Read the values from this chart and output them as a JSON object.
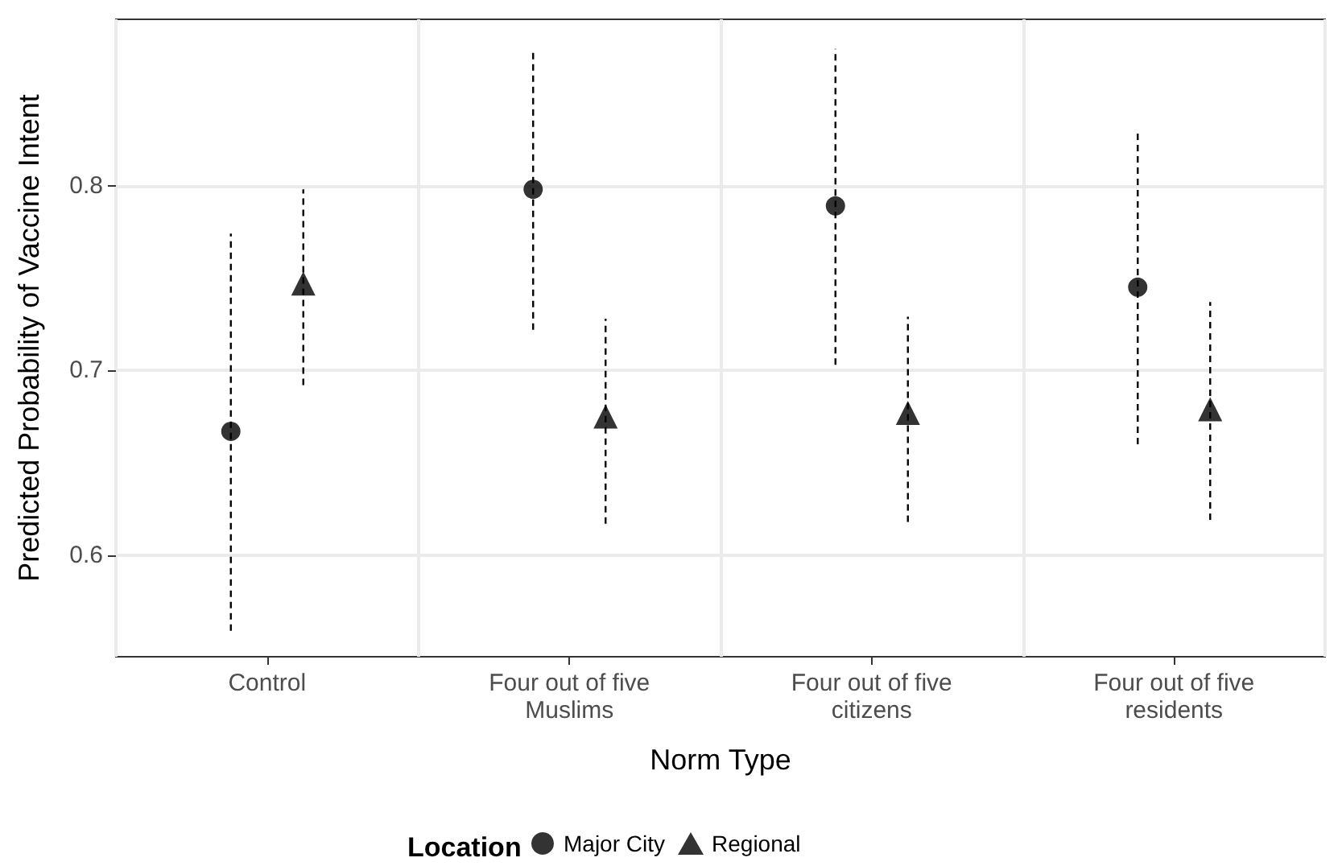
{
  "chart_data": {
    "type": "scatter",
    "xlabel": "Norm Type",
    "ylabel": "Predicted Probability of Vaccine Intent",
    "legend_title": "Location",
    "categories": [
      "Control",
      "Four out of five\nMuslims",
      "Four out of five\ncitizens",
      "Four out of five\nresidents"
    ],
    "series": [
      {
        "name": "Major City",
        "color": "#000000",
        "marker": "circle",
        "values": [
          0.667,
          0.798,
          0.789,
          0.745
        ],
        "errors": [
          [
            0.559,
            0.774
          ],
          [
            0.722,
            0.874
          ],
          [
            0.703,
            0.874
          ],
          [
            0.66,
            0.83
          ]
        ]
      },
      {
        "name": "Regional",
        "color": "#000000",
        "marker": "triangle",
        "values": [
          0.747,
          0.675,
          0.677,
          0.679
        ],
        "errors": [
          [
            0.692,
            0.798
          ],
          [
            0.617,
            0.728
          ],
          [
            0.618,
            0.729
          ],
          [
            0.619,
            0.737
          ]
        ]
      }
    ],
    "ylim": [
      0.545,
      0.89
    ],
    "yticks": [
      0.6,
      0.7,
      0.8
    ],
    "grid": true,
    "legend": "bottom"
  }
}
